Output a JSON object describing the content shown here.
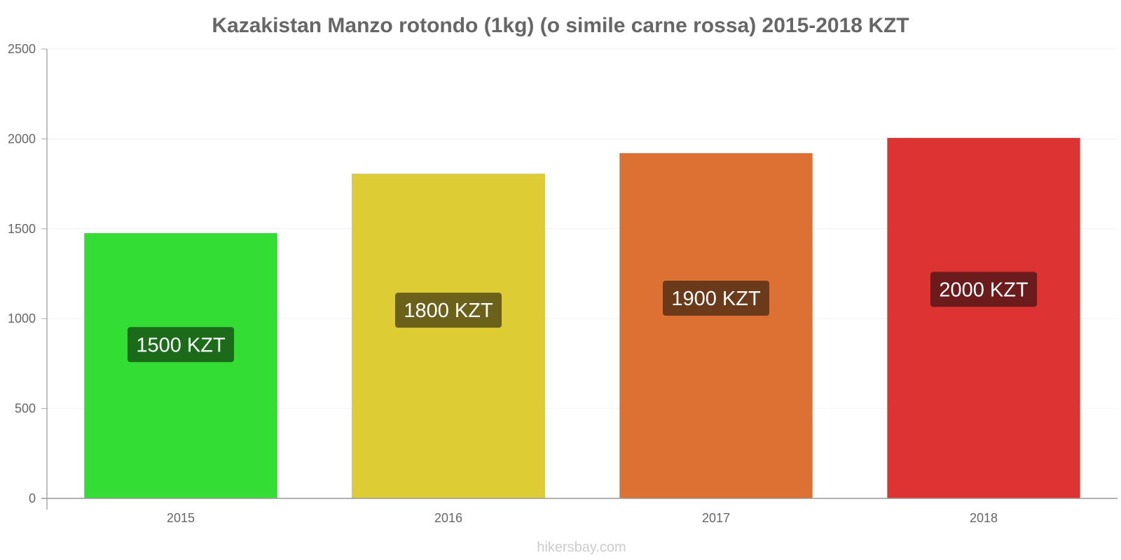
{
  "chart_data": {
    "type": "bar",
    "title": "Kazakistan Manzo rotondo (1kg) (o simile carne rossa) 2015-2018 KZT",
    "categories": [
      "2015",
      "2016",
      "2017",
      "2018"
    ],
    "values": [
      1475,
      1805,
      1920,
      2005
    ],
    "value_labels": [
      "1500 KZT",
      "1800 KZT",
      "1900 KZT",
      "2000 KZT"
    ],
    "bar_colors": [
      "#33dd33",
      "#ddcc33",
      "#dd7033",
      "#dd3333"
    ],
    "label_colors": [
      "#1b6b1b",
      "#6b611b",
      "#6b3a1b",
      "#6b1b1b"
    ],
    "ylim": [
      0,
      2500
    ],
    "yticks": [
      "0",
      "500",
      "1000",
      "1500",
      "2000",
      "2500"
    ],
    "xlabel": "",
    "ylabel": "",
    "grid": true
  },
  "footer": {
    "watermark": "hikersbay.com"
  }
}
